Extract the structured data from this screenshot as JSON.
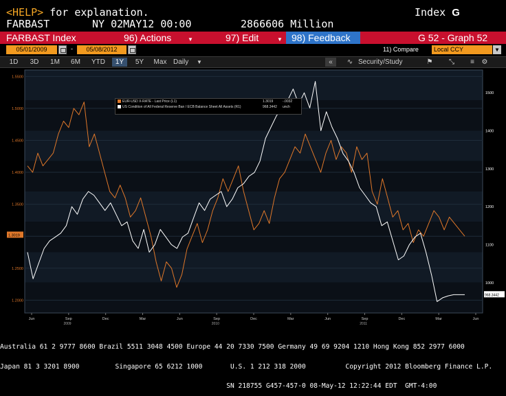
{
  "header": {
    "help": "<HELP>",
    "help_rest": " for explanation.",
    "index_label": "Index",
    "ticker": "FARBAST",
    "datetime": "NY 02MAY12 00:00",
    "value": "2866606 Million"
  },
  "menubar": {
    "title": "FARBAST Index",
    "actions": "96) Actions",
    "edit": "97) Edit",
    "feedback": "98) Feedback",
    "graph": "G 52 - Graph 52"
  },
  "daterange": {
    "start": "05/01/2009",
    "separator": "-",
    "end": "05/08/2012",
    "compare": "11) Compare",
    "currency": "Local CCY"
  },
  "toolbar": {
    "ranges": [
      "1D",
      "3D",
      "1M",
      "6M",
      "YTD",
      "1Y",
      "5Y",
      "Max"
    ],
    "selected": "1Y",
    "frequency": "Daily",
    "security_study": "Security/Study"
  },
  "chart_data": [
    {
      "type": "line",
      "legend": [
        {
          "name": "EUR-USD X-RATE - Last Price (L1)",
          "last": "1.3019",
          "change": "-.0032",
          "color": "#e0782a"
        },
        {
          "name": "US Condition of All Federal Reserve Ban / ECB Balance Sheet All Assets (R1)",
          "last": "968.3442",
          "change": "unch",
          "color": "#ffffff"
        }
      ],
      "left_axis": {
        "ticks": [
          "1.5500",
          "1.5000",
          "1.4500",
          "1.4000",
          "1.3500",
          "1.3000",
          "1.2500",
          "1.2000"
        ],
        "range": [
          1.18,
          1.56
        ],
        "current": "1.3019"
      },
      "right_axis": {
        "ticks": [
          "1500",
          "1400",
          "1300",
          "1200",
          "1100",
          "1000"
        ],
        "range": [
          920,
          1560
        ],
        "current": "968.3442"
      },
      "x_axis": {
        "months": [
          "Jun",
          "Sep",
          "Dec",
          "Mar",
          "Jun",
          "Sep",
          "Dec",
          "Mar",
          "Jun",
          "Sep",
          "Dec",
          "Mar",
          "Jun"
        ],
        "years": [
          "2009",
          "2010",
          "2011",
          "2012"
        ]
      },
      "series": [
        {
          "name": "EUR-USD X-RATE",
          "axis": "left",
          "color": "#e0782a",
          "values": [
            1.41,
            1.4,
            1.43,
            1.41,
            1.42,
            1.43,
            1.46,
            1.48,
            1.47,
            1.5,
            1.49,
            1.51,
            1.44,
            1.46,
            1.43,
            1.4,
            1.37,
            1.36,
            1.38,
            1.36,
            1.33,
            1.34,
            1.36,
            1.33,
            1.3,
            1.26,
            1.23,
            1.26,
            1.25,
            1.22,
            1.24,
            1.28,
            1.3,
            1.32,
            1.29,
            1.31,
            1.34,
            1.36,
            1.39,
            1.37,
            1.39,
            1.41,
            1.37,
            1.34,
            1.31,
            1.32,
            1.34,
            1.32,
            1.36,
            1.39,
            1.4,
            1.42,
            1.44,
            1.43,
            1.46,
            1.44,
            1.42,
            1.4,
            1.43,
            1.45,
            1.42,
            1.44,
            1.43,
            1.4,
            1.44,
            1.42,
            1.43,
            1.37,
            1.35,
            1.39,
            1.36,
            1.33,
            1.34,
            1.31,
            1.32,
            1.29,
            1.31,
            1.3,
            1.32,
            1.34,
            1.33,
            1.31,
            1.33,
            1.32,
            1.31,
            1.3
          ]
        },
        {
          "name": "Fed / ECB Balance Sheet",
          "axis": "right",
          "color": "#ffffff",
          "values": [
            1080,
            1010,
            1050,
            1090,
            1110,
            1120,
            1130,
            1150,
            1200,
            1180,
            1220,
            1240,
            1230,
            1210,
            1190,
            1210,
            1180,
            1150,
            1160,
            1110,
            1090,
            1140,
            1080,
            1100,
            1140,
            1120,
            1100,
            1090,
            1120,
            1130,
            1170,
            1210,
            1190,
            1220,
            1230,
            1240,
            1200,
            1220,
            1250,
            1260,
            1280,
            1290,
            1320,
            1380,
            1410,
            1440,
            1460,
            1480,
            1510,
            1470,
            1500,
            1460,
            1530,
            1400,
            1450,
            1410,
            1380,
            1340,
            1320,
            1290,
            1250,
            1230,
            1210,
            1200,
            1150,
            1160,
            1110,
            1060,
            1070,
            1100,
            1120,
            1130,
            1080,
            1020,
            950,
            960,
            965,
            968,
            968,
            968
          ]
        }
      ]
    }
  ],
  "footer": {
    "line1": "Australia 61 2 9777 8600 Brazil 5511 3048 4500 Europe 44 20 7330 7500 Germany 49 69 9204 1210 Hong Kong 852 2977 6000",
    "line2": "Japan 81 3 3201 8900         Singapore 65 6212 1000       U.S. 1 212 318 2000          Copyright 2012 Bloomberg Finance L.P.",
    "line3": "                                                         SN 218755 G457-457-0 08-May-12 12:22:44 EDT  GMT-4:00"
  }
}
